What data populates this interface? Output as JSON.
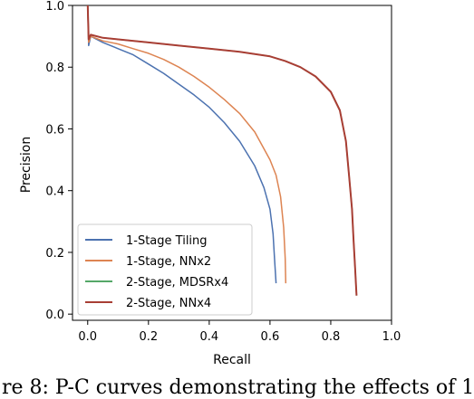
{
  "chart_data": {
    "type": "line",
    "xlabel": "Recall",
    "ylabel": "Precision",
    "xlim": [
      -0.05,
      1.0
    ],
    "ylim": [
      -0.02,
      1.0
    ],
    "xticks": [
      "0.0",
      "0.2",
      "0.4",
      "0.6",
      "0.8",
      "1.0"
    ],
    "yticks": [
      "0.0",
      "0.2",
      "0.4",
      "0.6",
      "0.8",
      "1.0"
    ],
    "grid": false,
    "legend_position": "lower-left",
    "series": [
      {
        "name": "1-Stage Tiling",
        "color": "#4c72b0",
        "points": [
          [
            0.0,
            1.0
          ],
          [
            0.003,
            0.87
          ],
          [
            0.01,
            0.9
          ],
          [
            0.05,
            0.88
          ],
          [
            0.1,
            0.86
          ],
          [
            0.15,
            0.84
          ],
          [
            0.2,
            0.81
          ],
          [
            0.25,
            0.78
          ],
          [
            0.3,
            0.745
          ],
          [
            0.35,
            0.71
          ],
          [
            0.4,
            0.67
          ],
          [
            0.45,
            0.62
          ],
          [
            0.5,
            0.56
          ],
          [
            0.55,
            0.48
          ],
          [
            0.58,
            0.41
          ],
          [
            0.6,
            0.34
          ],
          [
            0.61,
            0.26
          ],
          [
            0.615,
            0.18
          ],
          [
            0.62,
            0.1
          ]
        ]
      },
      {
        "name": "1-Stage, NNx2",
        "color": "#dd8452",
        "points": [
          [
            0.0,
            1.0
          ],
          [
            0.003,
            0.88
          ],
          [
            0.01,
            0.9
          ],
          [
            0.05,
            0.885
          ],
          [
            0.1,
            0.875
          ],
          [
            0.15,
            0.86
          ],
          [
            0.2,
            0.845
          ],
          [
            0.25,
            0.825
          ],
          [
            0.3,
            0.8
          ],
          [
            0.35,
            0.77
          ],
          [
            0.4,
            0.735
          ],
          [
            0.45,
            0.695
          ],
          [
            0.5,
            0.65
          ],
          [
            0.55,
            0.59
          ],
          [
            0.6,
            0.5
          ],
          [
            0.62,
            0.45
          ],
          [
            0.635,
            0.38
          ],
          [
            0.645,
            0.28
          ],
          [
            0.65,
            0.18
          ],
          [
            0.652,
            0.1
          ]
        ]
      },
      {
        "name": "2-Stage, MDSRx4",
        "color": "#55a868",
        "points": [
          [
            0.0,
            1.0
          ],
          [
            0.003,
            0.89
          ],
          [
            0.01,
            0.905
          ],
          [
            0.05,
            0.895
          ],
          [
            0.1,
            0.89
          ],
          [
            0.2,
            0.88
          ],
          [
            0.3,
            0.87
          ],
          [
            0.4,
            0.86
          ],
          [
            0.5,
            0.85
          ],
          [
            0.6,
            0.835
          ],
          [
            0.65,
            0.82
          ],
          [
            0.7,
            0.8
          ],
          [
            0.75,
            0.77
          ],
          [
            0.8,
            0.72
          ],
          [
            0.83,
            0.66
          ],
          [
            0.85,
            0.56
          ],
          [
            0.86,
            0.45
          ],
          [
            0.87,
            0.34
          ],
          [
            0.875,
            0.24
          ],
          [
            0.88,
            0.15
          ],
          [
            0.885,
            0.06
          ]
        ]
      },
      {
        "name": "2-Stage, NNx4",
        "color": "#a83e34",
        "points": [
          [
            0.0,
            1.0
          ],
          [
            0.003,
            0.89
          ],
          [
            0.01,
            0.905
          ],
          [
            0.05,
            0.895
          ],
          [
            0.1,
            0.89
          ],
          [
            0.2,
            0.88
          ],
          [
            0.3,
            0.87
          ],
          [
            0.4,
            0.86
          ],
          [
            0.5,
            0.85
          ],
          [
            0.6,
            0.835
          ],
          [
            0.65,
            0.82
          ],
          [
            0.7,
            0.8
          ],
          [
            0.75,
            0.77
          ],
          [
            0.8,
            0.72
          ],
          [
            0.83,
            0.66
          ],
          [
            0.85,
            0.56
          ],
          [
            0.86,
            0.45
          ],
          [
            0.87,
            0.34
          ],
          [
            0.875,
            0.24
          ],
          [
            0.88,
            0.15
          ],
          [
            0.885,
            0.06
          ]
        ]
      }
    ]
  },
  "caption": "re 8: P-C curves demonstrating the effects of 1"
}
